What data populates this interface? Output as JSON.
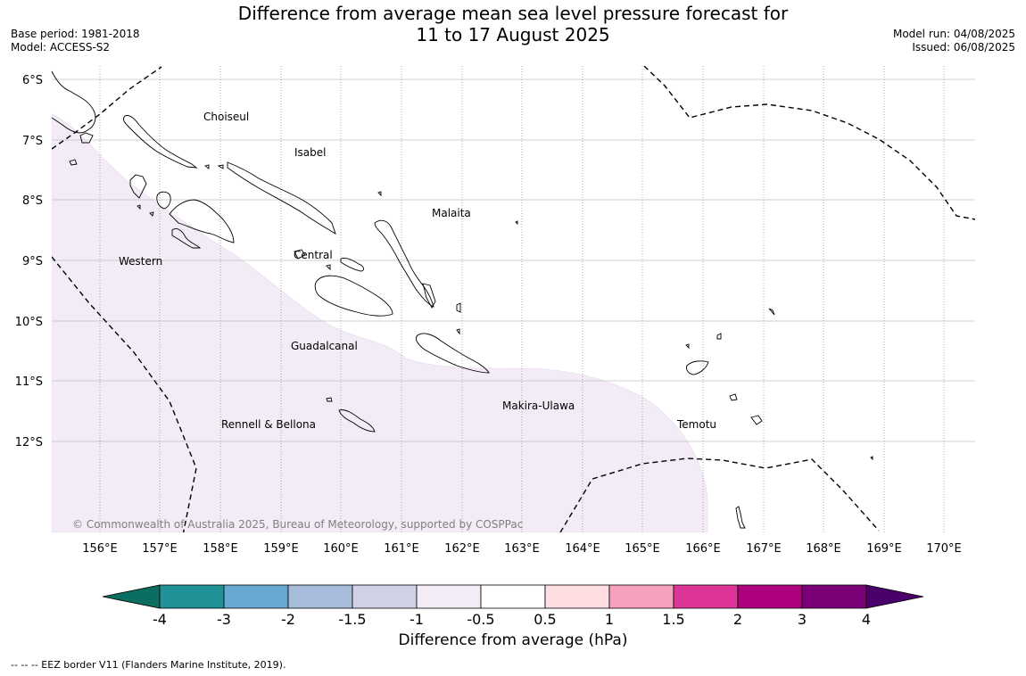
{
  "title": {
    "line1": "Difference from average mean sea level pressure forecast for",
    "line2": "11 to 17 August 2025"
  },
  "meta_left": {
    "base_period": "Base period: 1981-2018",
    "model": "Model: ACCESS-S2"
  },
  "meta_right": {
    "model_run": "Model run: 04/08/2025",
    "issued": "Issued: 06/08/2025"
  },
  "map": {
    "lat_labels": [
      "6°S",
      "7°S",
      "8°S",
      "9°S",
      "10°S",
      "11°S",
      "12°S"
    ],
    "lon_labels": [
      "156°E",
      "157°E",
      "158°E",
      "159°E",
      "160°E",
      "161°E",
      "162°E",
      "163°E",
      "164°E",
      "165°E",
      "166°E",
      "167°E",
      "168°E",
      "169°E",
      "170°E"
    ],
    "regions": [
      "Choiseul",
      "Isabel",
      "Malaita",
      "Western",
      "Central",
      "Guadalcanal",
      "Makira-Ulawa",
      "Rennell & Bellona",
      "Temotu"
    ],
    "anomaly_fill_color": "#f3ebf5",
    "copyright": "© Commonwealth of Australia 2025, Bureau of Meteorology, supported by COSPPac"
  },
  "colorbar": {
    "colors": [
      "#0c6e60",
      "#1f9197",
      "#67a8d1",
      "#a7bbdb",
      "#d0d1e6",
      "#f3ebf5",
      "#ffffff",
      "#fddddf",
      "#f7a1bd",
      "#dd3497",
      "#ae017e",
      "#7a0177",
      "#49006a"
    ],
    "tick_labels": [
      "-4",
      "-3",
      "-2",
      "-1.5",
      "-1",
      "-0.5",
      "0.5",
      "1",
      "1.5",
      "2",
      "3",
      "4"
    ],
    "label": "Difference from average (hPa)"
  },
  "legend_note": "-- -- -- EEZ border V11 (Flanders Marine Institute, 2019)."
}
